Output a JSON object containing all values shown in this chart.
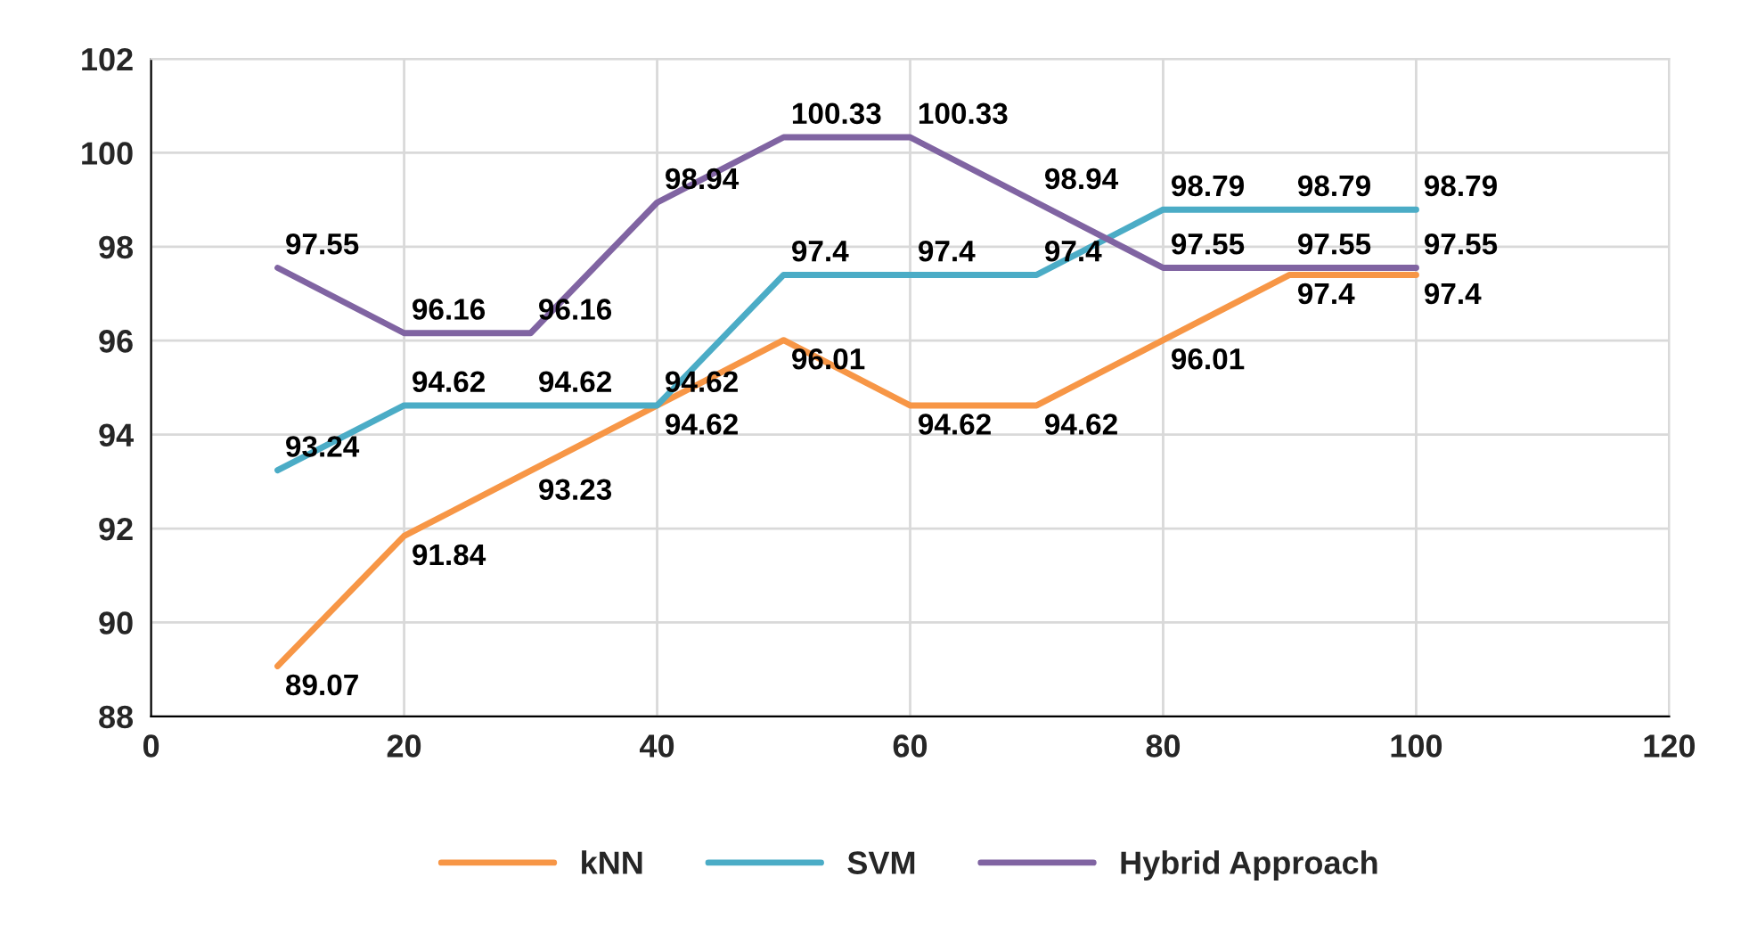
{
  "chart_data": {
    "type": "line",
    "x": [
      10,
      20,
      30,
      40,
      50,
      60,
      70,
      80,
      90,
      100
    ],
    "series": [
      {
        "name": "kNN",
        "color": "#f79646",
        "values": [
          89.07,
          91.84,
          93.23,
          94.62,
          96.01,
          94.62,
          94.62,
          96.01,
          97.4,
          97.4
        ]
      },
      {
        "name": "SVM",
        "color": "#4bacc6",
        "values": [
          93.24,
          94.62,
          94.62,
          94.62,
          97.4,
          97.4,
          97.4,
          98.79,
          98.79,
          98.79
        ]
      },
      {
        "name": "Hybrid Approach",
        "color": "#8064a2",
        "values": [
          97.55,
          96.16,
          96.16,
          98.94,
          100.33,
          100.33,
          98.94,
          97.55,
          97.55,
          97.55
        ]
      }
    ],
    "xlim": [
      0,
      120
    ],
    "xticks": [
      0,
      20,
      40,
      60,
      80,
      100,
      120
    ],
    "ylim": [
      88,
      102
    ],
    "yticks": [
      88,
      90,
      92,
      94,
      96,
      98,
      100,
      102
    ],
    "grid": true,
    "legend": "bottom",
    "data_labels": true,
    "marker": "none",
    "line_style": "solid"
  }
}
